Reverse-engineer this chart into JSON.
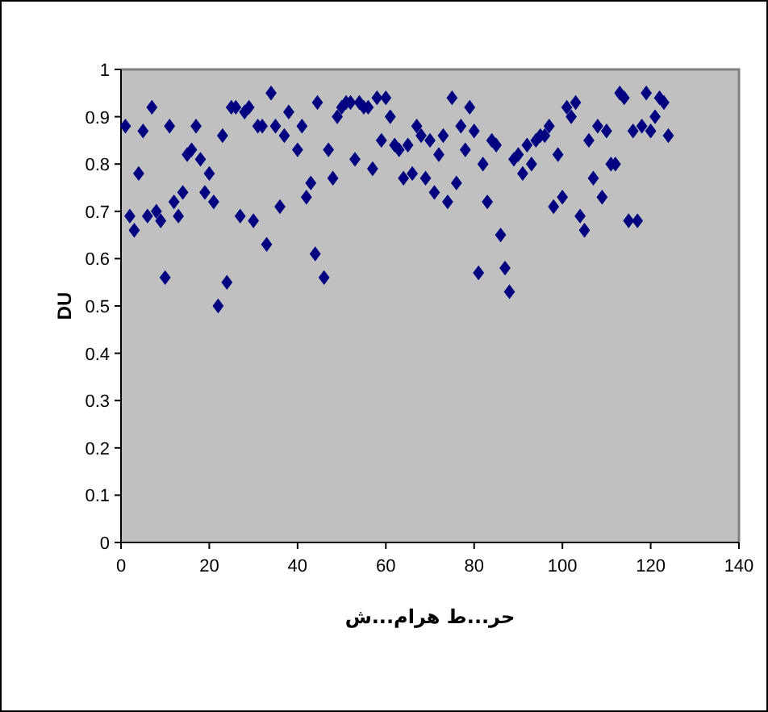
{
  "chart_data": {
    "type": "scatter",
    "xlabel": "ش...ماره ط...رح",
    "ylabel": "DU",
    "marker": "diamond",
    "color": "#000080",
    "xlim": [
      0,
      140
    ],
    "xticks": [
      0,
      20,
      40,
      60,
      80,
      100,
      120,
      140
    ],
    "ylim": [
      0,
      1
    ],
    "yticks": [
      0,
      0.1,
      0.2,
      0.3,
      0.4,
      0.5,
      0.6,
      0.7,
      0.8,
      0.9,
      1
    ],
    "x": [
      1,
      2,
      3,
      4,
      5,
      6,
      7,
      8,
      9,
      10,
      11,
      12,
      13,
      14,
      15,
      16,
      17,
      18,
      19,
      20,
      21,
      22,
      23,
      24,
      25,
      26,
      27,
      28,
      29,
      30,
      31,
      32,
      33,
      34,
      35,
      36,
      37,
      38,
      40,
      41,
      42,
      43,
      44,
      44.5,
      46,
      47,
      48,
      49,
      50,
      51,
      52,
      53,
      54,
      55,
      56,
      57,
      58,
      59,
      60,
      61,
      62,
      63,
      64,
      65,
      66,
      67,
      68,
      69,
      70,
      71,
      72,
      73,
      74,
      75,
      76,
      77,
      78,
      79,
      80,
      81,
      82,
      83,
      84,
      85,
      86,
      87,
      88,
      89,
      90,
      91,
      92,
      93,
      94,
      95,
      96,
      97,
      98,
      99,
      100,
      101,
      102,
      103,
      104,
      105,
      106,
      107,
      108,
      109,
      110,
      111,
      112,
      113,
      114,
      115,
      116,
      117,
      118,
      119,
      120,
      121,
      122,
      123,
      124
    ],
    "values": [
      0.88,
      0.69,
      0.66,
      0.78,
      0.87,
      0.69,
      0.92,
      0.7,
      0.68,
      0.56,
      0.88,
      0.72,
      0.69,
      0.74,
      0.82,
      0.83,
      0.88,
      0.81,
      0.74,
      0.78,
      0.72,
      0.5,
      0.86,
      0.55,
      0.92,
      0.92,
      0.69,
      0.91,
      0.92,
      0.68,
      0.88,
      0.88,
      0.63,
      0.95,
      0.88,
      0.71,
      0.86,
      0.91,
      0.83,
      0.88,
      0.73,
      0.76,
      0.61,
      0.93,
      0.56,
      0.83,
      0.77,
      0.9,
      0.92,
      0.93,
      0.93,
      0.81,
      0.93,
      0.92,
      0.92,
      0.79,
      0.94,
      0.85,
      0.94,
      0.9,
      0.84,
      0.83,
      0.77,
      0.84,
      0.78,
      0.88,
      0.86,
      0.77,
      0.85,
      0.74,
      0.82,
      0.86,
      0.72,
      0.94,
      0.76,
      0.88,
      0.83,
      0.92,
      0.87,
      0.57,
      0.8,
      0.72,
      0.85,
      0.84,
      0.65,
      0.58,
      0.53,
      0.81,
      0.82,
      0.78,
      0.84,
      0.8,
      0.85,
      0.86,
      0.86,
      0.88,
      0.71,
      0.82,
      0.73,
      0.92,
      0.9,
      0.93,
      0.69,
      0.66,
      0.85,
      0.77,
      0.88,
      0.73,
      0.87,
      0.8,
      0.8,
      0.95,
      0.94,
      0.68,
      0.87,
      0.68,
      0.88,
      0.95,
      0.87,
      0.9,
      0.94,
      0.93,
      0.86
    ]
  }
}
